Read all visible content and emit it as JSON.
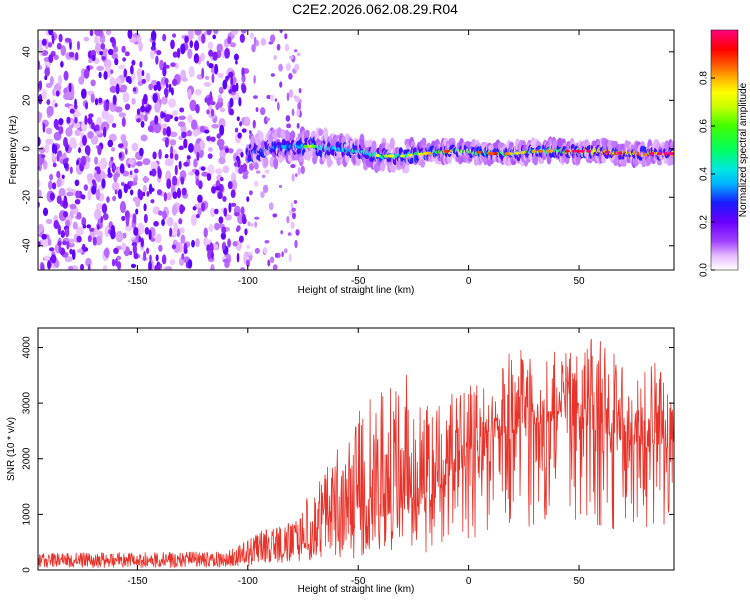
{
  "title": "C2E2.2026.062.08.29.R04",
  "chart_data": [
    {
      "type": "heatmap",
      "xlabel": "Height of straight line (km)",
      "ylabel": "Frequency (Hz)",
      "xlim": [
        -195,
        93
      ],
      "ylim": [
        -50,
        49
      ],
      "xticks": [
        -150,
        -100,
        -50,
        0,
        50
      ],
      "yticks": [
        -40,
        -20,
        0,
        20,
        40
      ],
      "colorbar": {
        "label": "Normalized spectral amplitude",
        "range": [
          0,
          1
        ],
        "ticks": [
          "0.0",
          "0.2",
          "0.4",
          "0.6",
          "0.8"
        ],
        "tick_values": [
          0,
          0.2,
          0.4,
          0.6,
          0.8
        ]
      },
      "noise_region": {
        "x_from": -195,
        "x_to": -100
      },
      "sparse_region": {
        "x_from": -100,
        "x_to": -75
      },
      "signal_ridge": {
        "x": [
          -100,
          -90,
          -80,
          -70,
          -60,
          -50,
          -40,
          -30,
          -20,
          -10,
          0,
          10,
          20,
          30,
          40,
          50,
          60,
          70,
          80,
          93
        ],
        "freq": [
          -2,
          0,
          1,
          1,
          0,
          -1,
          -3,
          -3,
          -2,
          -1,
          -1,
          -2,
          -2,
          -1,
          -1,
          -1,
          -1,
          -2,
          -2,
          -2
        ],
        "amplitude": [
          0.3,
          0.35,
          0.4,
          0.45,
          0.45,
          0.5,
          0.5,
          0.5,
          0.6,
          0.7,
          0.7,
          0.7,
          0.6,
          0.6,
          0.65,
          0.8,
          0.85,
          0.9,
          0.9,
          0.85
        ]
      }
    },
    {
      "type": "line",
      "xlabel": "Height of straight line (km)",
      "ylabel": "SNR (10 * v/v)",
      "xlim": [
        -195,
        93
      ],
      "ylim": [
        0,
        4350
      ],
      "xticks": [
        -150,
        -100,
        -50,
        0,
        50
      ],
      "yticks": [
        0,
        1000,
        2000,
        3000,
        4000
      ],
      "series": [
        {
          "name": "SNR",
          "color": "#e8332a",
          "envelope_x": [
            -195,
            -150,
            -110,
            -100,
            -90,
            -80,
            -70,
            -60,
            -50,
            -40,
            -30,
            -20,
            -10,
            0,
            10,
            20,
            30,
            40,
            50,
            60,
            70,
            80,
            93
          ],
          "envelope_base": [
            100,
            100,
            110,
            180,
            300,
            350,
            450,
            650,
            700,
            900,
            1100,
            950,
            1600,
            1900,
            2100,
            2400,
            2600,
            2700,
            2550,
            2500,
            2300,
            2200,
            2300
          ],
          "envelope_peak": [
            300,
            320,
            330,
            550,
            800,
            850,
            1500,
            2300,
            2900,
            3300,
            3600,
            3100,
            3200,
            3400,
            3250,
            4150,
            3700,
            4000,
            4300,
            4300,
            3900,
            3750,
            3700
          ]
        }
      ]
    }
  ]
}
